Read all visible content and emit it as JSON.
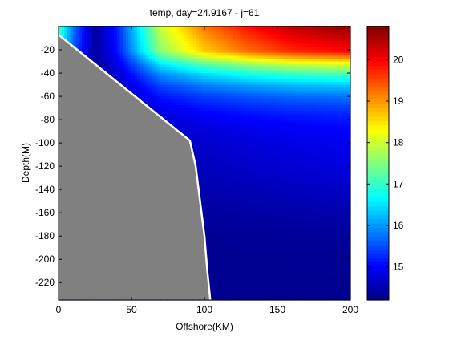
{
  "chart_data": {
    "type": "heatmap",
    "title": "temp, day=24.9167 - j=61",
    "xlabel": "Offshore(KM)",
    "ylabel": "Depth(M)",
    "xlim": [
      0,
      200
    ],
    "ylim": [
      -235,
      0
    ],
    "xticks": [
      0,
      50,
      100,
      150,
      200
    ],
    "xtick_labels": [
      "0",
      "50",
      "100",
      "150",
      "200"
    ],
    "yticks": [
      -20,
      -40,
      -60,
      -80,
      -100,
      -120,
      -140,
      -160,
      -180,
      -200,
      -220
    ],
    "ytick_labels": [
      "-20",
      "-40",
      "-60",
      "-80",
      "-100",
      "-120",
      "-140",
      "-160",
      "-180",
      "-200",
      "-220"
    ],
    "colorbar": {
      "range": [
        14.2,
        20.8
      ],
      "ticks": [
        15,
        16,
        17,
        18,
        19,
        20
      ],
      "tick_labels": [
        "15",
        "16",
        "17",
        "18",
        "19",
        "20"
      ],
      "colormap": "jet"
    },
    "bathymetry_profile": [
      {
        "x": 0,
        "y": -7
      },
      {
        "x": 90,
        "y": -98
      },
      {
        "x": 94,
        "y": -120
      },
      {
        "x": 97,
        "y": -150
      },
      {
        "x": 100,
        "y": -180
      },
      {
        "x": 102,
        "y": -210
      },
      {
        "x": 104,
        "y": -235
      }
    ],
    "land_color": "#808080",
    "temperature_field": {
      "description_of_values": "Temperature (colorbar units) as a function of offshore distance and depth",
      "surface_values_along_x": [
        {
          "x": 0,
          "t": 17.2
        },
        {
          "x": 10,
          "t": 15.8
        },
        {
          "x": 25,
          "t": 14.4
        },
        {
          "x": 40,
          "t": 15.2
        },
        {
          "x": 55,
          "t": 16.6
        },
        {
          "x": 70,
          "t": 18.0
        },
        {
          "x": 85,
          "t": 18.6
        },
        {
          "x": 100,
          "t": 19.2
        },
        {
          "x": 130,
          "t": 19.9
        },
        {
          "x": 160,
          "t": 20.4
        },
        {
          "x": 200,
          "t": 20.7
        }
      ],
      "deep_value": 14.3
    }
  }
}
